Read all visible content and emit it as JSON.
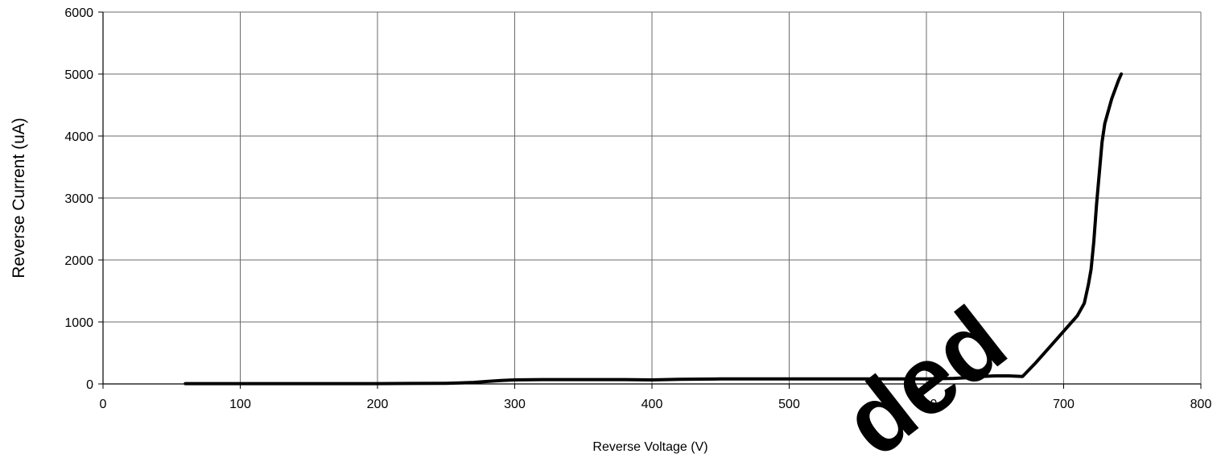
{
  "chart_data": {
    "type": "line",
    "title": "",
    "xlabel": "Reverse Voltage (V)",
    "ylabel": "Reverse Current (uA)",
    "xlim": [
      0,
      800
    ],
    "ylim": [
      0,
      6000
    ],
    "x_ticks": [
      0,
      100,
      200,
      300,
      400,
      500,
      600,
      700,
      800
    ],
    "y_ticks": [
      0,
      1000,
      2000,
      3000,
      4000,
      5000,
      6000
    ],
    "grid": true,
    "legend": "none",
    "line_color": "#000000",
    "series": [
      {
        "x": [
          60,
          100,
          150,
          200,
          250,
          260,
          270,
          280,
          290,
          300,
          320,
          350,
          380,
          400,
          420,
          450,
          500,
          550,
          600,
          620,
          630,
          640,
          650,
          660,
          670,
          680,
          690,
          700,
          710,
          715,
          718,
          720,
          722,
          724,
          726,
          728,
          730,
          735,
          740,
          742
        ],
        "y": [
          5,
          5,
          5,
          5,
          10,
          15,
          25,
          40,
          55,
          65,
          70,
          70,
          70,
          65,
          75,
          80,
          80,
          80,
          80,
          90,
          100,
          120,
          130,
          130,
          120,
          350,
          600,
          850,
          1100,
          1300,
          1600,
          1850,
          2300,
          2900,
          3400,
          3900,
          4200,
          4600,
          4900,
          5000
        ]
      }
    ]
  },
  "watermark": {
    "text": "ded"
  }
}
